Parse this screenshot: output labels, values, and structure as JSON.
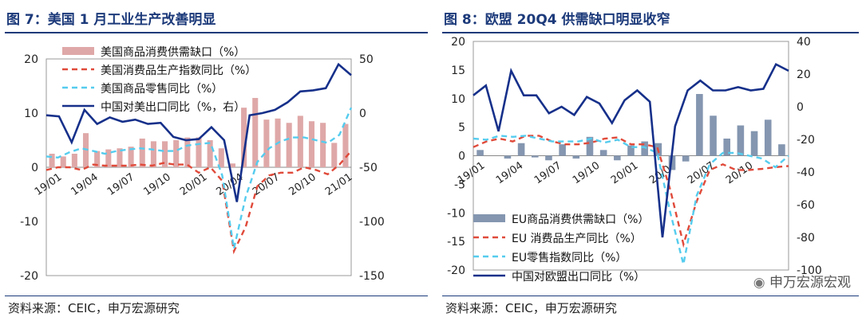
{
  "left": {
    "title": "图 7：美国 1 月工业生产改善明显",
    "source": "资料来源：CEIC，申万宏源研究"
  },
  "right": {
    "title": "图 8：欧盟 20Q4 供需缺口明显收窄",
    "source": "资料来源：CEIC，申万宏源研究",
    "watermark": "申万宏源宏观"
  },
  "colors": {
    "bar_left": "#dfa8a8",
    "bar_right": "#8496b0",
    "red": "#e04a3a",
    "cyan": "#55ccee",
    "navy": "#16308a",
    "title": "#1c3a7a"
  },
  "chart_data": [
    {
      "type": "bar+line",
      "title": "图 7：美国 1 月工业生产改善明显",
      "x_ticks": [
        "19/01",
        "19/04",
        "19/07",
        "19/10",
        "20/01",
        "20/04",
        "20/07",
        "20/10",
        "21/01"
      ],
      "y_left": {
        "min": -20,
        "max": 20,
        "ticks": [
          "20",
          "10",
          "0",
          "-10",
          "-20"
        ]
      },
      "y_right": {
        "min": -150,
        "max": 50,
        "ticks": [
          "50",
          "0",
          "-50",
          "-100",
          "-150"
        ]
      },
      "legend": [
        "美国商品消费供需缺口（%）",
        "美国消费品生产指数同比（%）",
        "美国商品零售同比（%）",
        "中国对美出口同比（%，右）"
      ],
      "series": [
        {
          "name": "美国商品消费供需缺口（%）",
          "kind": "bar",
          "axis": "left",
          "values": [
            2.5,
            2.0,
            2.5,
            6.3,
            3.0,
            3.3,
            3.5,
            3.8,
            5.3,
            4.8,
            4.8,
            5.0,
            5.5,
            5.5,
            5.0,
            3.5,
            0.7,
            11.0,
            12.8,
            8.8,
            9.0,
            8.2,
            9.5,
            8.5,
            8.2,
            4.5,
            8.0
          ]
        },
        {
          "name": "美国消费品生产指数同比（%）",
          "kind": "line",
          "axis": "left",
          "style": "dashed",
          "values": [
            -0.5,
            0,
            0,
            -0.5,
            0.5,
            0.3,
            0.3,
            0.3,
            0.5,
            0.3,
            0.8,
            0.5,
            0.5,
            -1.0,
            0,
            -2.5,
            -15.5,
            -11.0,
            -3.5,
            -1.5,
            -1.0,
            -1.0,
            0,
            -0.5,
            -1.3,
            0.5,
            3.0
          ]
        },
        {
          "name": "美国商品零售同比（%）",
          "kind": "line",
          "axis": "left",
          "style": "dashed",
          "values": [
            2.0,
            1.8,
            2.8,
            3.5,
            3.0,
            2.5,
            3.0,
            3.3,
            3.5,
            3.3,
            3.0,
            3.0,
            4.0,
            4.3,
            4.5,
            -1.5,
            -15.0,
            -5.5,
            1.0,
            3.5,
            4.8,
            5.5,
            5.5,
            5.0,
            4.5,
            6.0,
            11.0
          ]
        },
        {
          "name": "中国对美出口同比（%，右）",
          "kind": "line",
          "axis": "right",
          "style": "solid",
          "values": [
            -2,
            -3,
            -27,
            3,
            -10,
            -4,
            -8,
            -6,
            -10,
            -9,
            -22,
            -25,
            -24,
            -13,
            -25,
            -82,
            -2,
            0,
            3,
            10,
            20,
            21,
            23,
            45,
            35
          ]
        }
      ]
    },
    {
      "type": "bar+line",
      "title": "图 8：欧盟 20Q4 供需缺口明显收窄",
      "x_ticks": [
        "19/01",
        "19/04",
        "19/07",
        "19/10",
        "20/01",
        "20/04",
        "20/07",
        "20/10"
      ],
      "y_left": {
        "min": -20,
        "max": 20,
        "ticks": [
          "20",
          "15",
          "10",
          "5",
          "0",
          "-5",
          "-10",
          "-15",
          "-20"
        ]
      },
      "y_right": {
        "min": -100,
        "max": 40,
        "ticks": [
          "40",
          "20",
          "0",
          "-20",
          "-40",
          "-60",
          "-80",
          "-100"
        ]
      },
      "legend": [
        "EU商品消费供需缺口（%）",
        "EU 消费品生产同比（%）",
        "EU零售指数同比（%）",
        "中国对欧盟出口同比（%）"
      ],
      "series": [
        {
          "name": "EU商品消费供需缺口（%）",
          "kind": "bar",
          "axis": "left",
          "values": [
            1.0,
            0,
            -0.5,
            2.2,
            -0.3,
            -0.8,
            2.0,
            -0.5,
            3.3,
            1.0,
            -0.8,
            1.8,
            2.5,
            2.2,
            -2.5,
            -1.0,
            10.8,
            7.0,
            3.0,
            5.3,
            4.3,
            6.3,
            2.0
          ]
        },
        {
          "name": "EU 消费品生产同比（%）",
          "kind": "line",
          "axis": "left",
          "style": "dashed",
          "values": [
            1.5,
            2.5,
            3.0,
            2.5,
            3.5,
            3.5,
            2.5,
            2.0,
            2.0,
            2.3,
            3.0,
            3.2,
            2.0,
            2.0,
            1.5,
            -6.0,
            -15.5,
            -8.0,
            -2.5,
            -1.5,
            -2.5,
            -2.5,
            -2.3,
            -2.0,
            -1.8
          ]
        },
        {
          "name": "EU零售指数同比（%）",
          "kind": "line",
          "axis": "left",
          "style": "dashed",
          "values": [
            3.0,
            2.8,
            3.5,
            3.3,
            3.5,
            3.0,
            2.5,
            2.5,
            2.5,
            3.0,
            2.3,
            2.8,
            1.5,
            1.5,
            0.5,
            -10.0,
            -19.0,
            -7.0,
            -1.5,
            0.5,
            0.5,
            0,
            -0.5,
            -2.0,
            0
          ]
        },
        {
          "name": "中国对欧盟出口同比（%）",
          "kind": "line",
          "axis": "right",
          "style": "solid",
          "values": [
            7,
            13,
            -15,
            22,
            7,
            7,
            -4,
            0,
            -5,
            6,
            2,
            -10,
            4,
            10,
            3,
            -80,
            -12,
            10,
            16,
            10,
            10,
            12,
            10,
            11,
            26,
            22
          ]
        }
      ]
    }
  ]
}
